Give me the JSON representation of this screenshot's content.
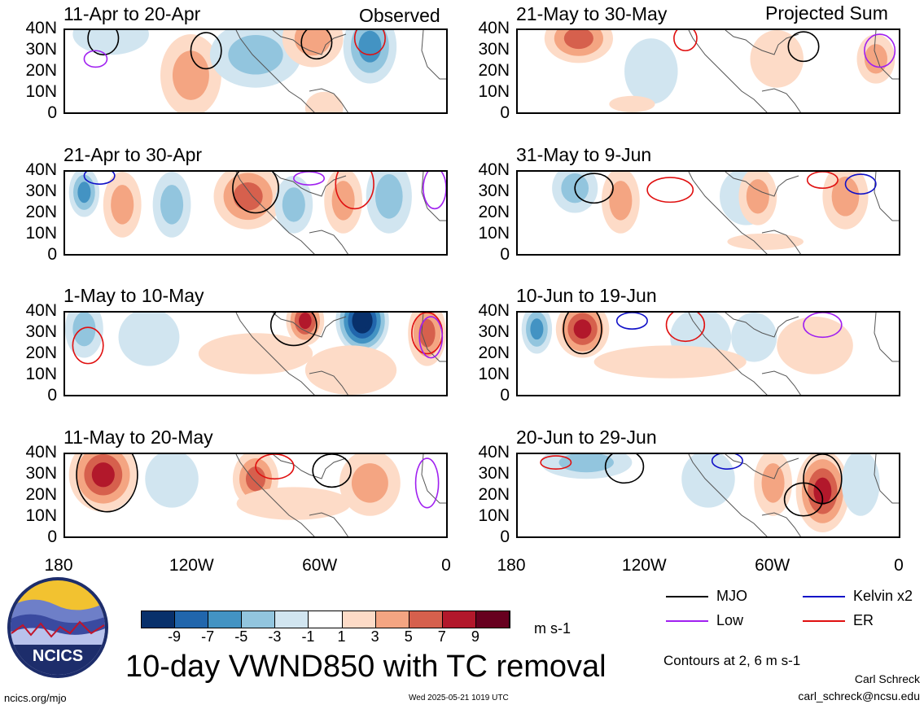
{
  "figure": {
    "title": "10-day VWND850 with TC removal",
    "left_header": "Observed",
    "right_header": "Projected Sum",
    "colorbar_unit": "m s-1",
    "contour_note": "Contours at 2, 6 m s-1",
    "author": "Carl Schreck",
    "email": "carl_schreck@ncsu.edu",
    "url": "ncics.org/mjo",
    "timestamp": "Wed 2025-05-21 1019 UTC",
    "logo_text": "NCICS"
  },
  "axes": {
    "y_ticks": [
      "40N",
      "30N",
      "20N",
      "10N",
      "0"
    ],
    "x_ticks": [
      "180",
      "120W",
      "60W",
      "0"
    ]
  },
  "colorbar": {
    "labels": [
      "-9",
      "-7",
      "-5",
      "-3",
      "-1",
      "1",
      "3",
      "5",
      "7",
      "9"
    ],
    "colors": [
      "#08306b",
      "#2166ac",
      "#4393c3",
      "#92c5de",
      "#d1e5f0",
      "#ffffff",
      "#fddbc7",
      "#f4a582",
      "#d6604d",
      "#b2182b",
      "#67001f"
    ]
  },
  "legend": [
    {
      "label": "MJO",
      "color": "#000000"
    },
    {
      "label": "Kelvin x2",
      "color": "#1010c8"
    },
    {
      "label": "Low",
      "color": "#a020f0"
    },
    {
      "label": "ER",
      "color": "#e01010"
    }
  ],
  "panels": [
    {
      "title": "11-Apr to 20-Apr"
    },
    {
      "title": "21-May to 30-May"
    },
    {
      "title": "21-Apr to 30-Apr"
    },
    {
      "title": "31-May to 9-Jun"
    },
    {
      "title": "1-May to 10-May"
    },
    {
      "title": "10-Jun to 19-Jun"
    },
    {
      "title": "11-May to 20-May"
    },
    {
      "title": "20-Jun to 29-Jun"
    }
  ],
  "chart_data": {
    "type": "heatmap",
    "title": "10-day VWND850 with TC removal",
    "variable": "VWND850",
    "unit": "m s-1",
    "x_range": [
      "180",
      "0"
    ],
    "y_range": [
      "0",
      "40N"
    ],
    "contour_levels": [
      2,
      6
    ],
    "levels": [
      -9,
      -7,
      -5,
      -3,
      -1,
      1,
      3,
      5,
      7,
      9
    ],
    "panels": [
      {
        "period": "11-Apr to 20-Apr",
        "group": "Observed"
      },
      {
        "period": "21-Apr to 30-Apr",
        "group": "Observed"
      },
      {
        "period": "1-May to 10-May",
        "group": "Observed"
      },
      {
        "period": "11-May to 20-May",
        "group": "Observed"
      },
      {
        "period": "21-May to 30-May",
        "group": "Projected Sum"
      },
      {
        "period": "31-May to 9-Jun",
        "group": "Projected Sum"
      },
      {
        "period": "10-Jun to 19-Jun",
        "group": "Projected Sum"
      },
      {
        "period": "20-Jun to 29-Jun",
        "group": "Projected Sum"
      }
    ]
  }
}
